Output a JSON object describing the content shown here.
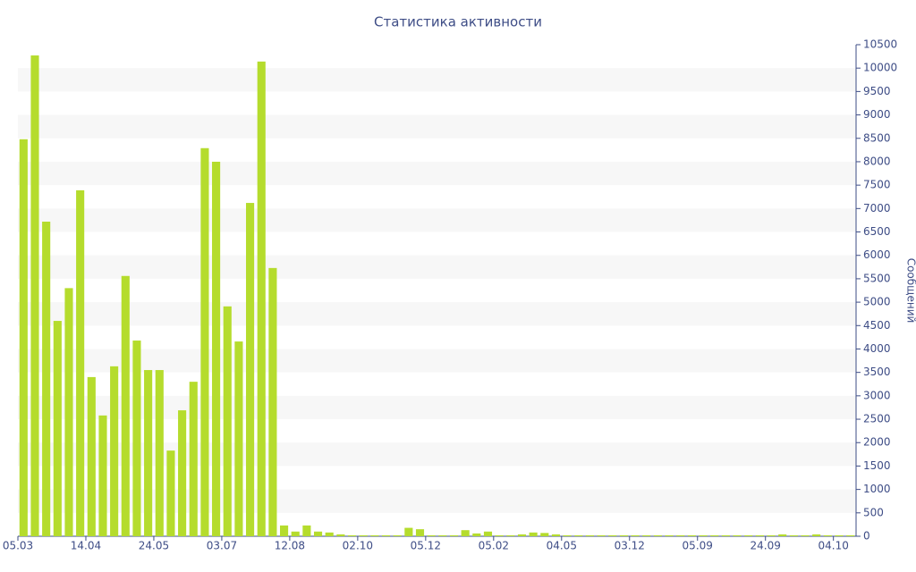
{
  "chart_data": {
    "type": "bar",
    "title": "Статистика активности",
    "y_label": "Сообщений",
    "color": "#b5dc2d",
    "grid": true,
    "categories": [
      "05.03",
      null,
      null,
      null,
      null,
      null,
      "14.04",
      null,
      null,
      null,
      null,
      null,
      "24.05",
      null,
      null,
      null,
      null,
      null,
      "03.07",
      null,
      null,
      null,
      null,
      null,
      "12.08",
      null,
      null,
      null,
      null,
      null,
      "02.10",
      null,
      null,
      null,
      null,
      null,
      "05.12",
      null,
      null,
      null,
      null,
      null,
      "05.02",
      null,
      null,
      null,
      null,
      null,
      "04.05",
      null,
      null,
      null,
      null,
      null,
      "03.12",
      null,
      null,
      null,
      null,
      null,
      "05.09",
      null,
      null,
      null,
      null,
      null,
      "24.09",
      null,
      null,
      null,
      null,
      null,
      "04.10",
      null
    ],
    "values": [
      8480,
      10270,
      6720,
      4600,
      5300,
      7390,
      3400,
      2580,
      3630,
      5560,
      4180,
      3550,
      3550,
      1830,
      2690,
      3300,
      8290,
      8000,
      4910,
      4160,
      7120,
      10140,
      5730,
      230,
      100,
      230,
      100,
      80,
      40,
      20,
      20,
      20,
      20,
      20,
      180,
      150,
      20,
      20,
      20,
      130,
      60,
      100,
      20,
      20,
      40,
      80,
      70,
      40,
      20,
      20,
      20,
      20,
      20,
      20,
      20,
      20,
      20,
      20,
      20,
      20,
      20,
      20,
      20,
      20,
      20,
      20,
      20,
      40,
      20,
      20,
      40,
      20,
      20,
      20
    ],
    "ylim": [
      0,
      10500
    ],
    "yticks": [
      0,
      500,
      1000,
      1500,
      2000,
      2500,
      3000,
      3500,
      4000,
      4500,
      5000,
      5500,
      6000,
      6500,
      7000,
      7500,
      8000,
      8500,
      9000,
      9500,
      10000,
      10500
    ]
  }
}
